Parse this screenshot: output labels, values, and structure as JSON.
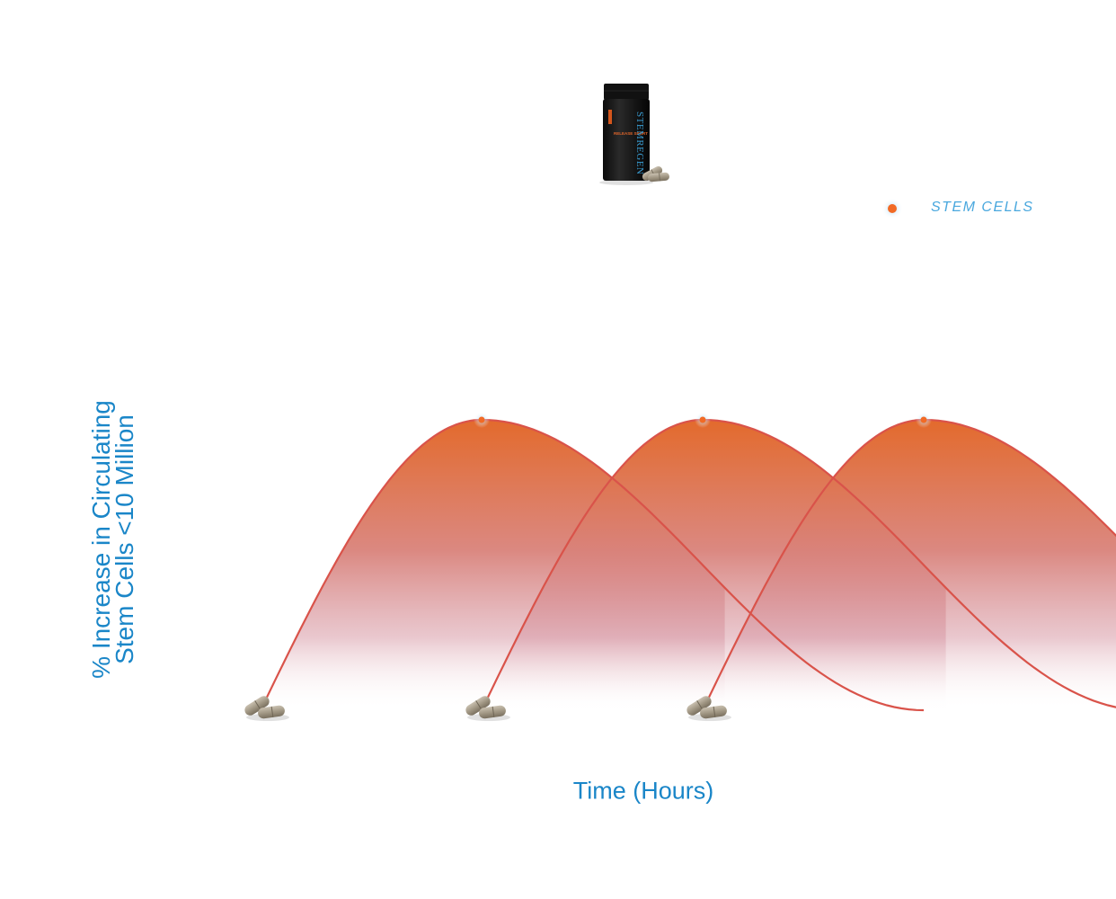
{
  "chart_data": {
    "type": "area",
    "title": "",
    "xlabel": "Time (Hours)",
    "ylabel_lines": [
      "% Increase in Circulating",
      "Stem Cells <10 Million"
    ],
    "legend": {
      "label": "STEM CELLS",
      "position": "top-right"
    },
    "grid": false,
    "series": [
      {
        "name": "STEM CELLS",
        "peaks": [
          {
            "start": 0,
            "peak": 1,
            "end": 3,
            "value": 100
          },
          {
            "start": 1,
            "peak": 2,
            "end": 4,
            "value": 100
          },
          {
            "start": 2,
            "peak": 3,
            "end": 5,
            "value": 100
          }
        ]
      }
    ],
    "dose_markers": [
      0,
      1,
      2
    ],
    "xlim": [
      0,
      5
    ],
    "ylim": [
      0,
      100
    ]
  },
  "product": {
    "name": "STEMREGEN",
    "variant": "RELEASE SPORT"
  },
  "colors": {
    "curve": "#d9534a",
    "fill_top": "#e27035",
    "fill_mid": "#d88b90",
    "label": "#1a86c8",
    "legend_label": "#4aa8de",
    "peak_dot": "#f26a25"
  }
}
